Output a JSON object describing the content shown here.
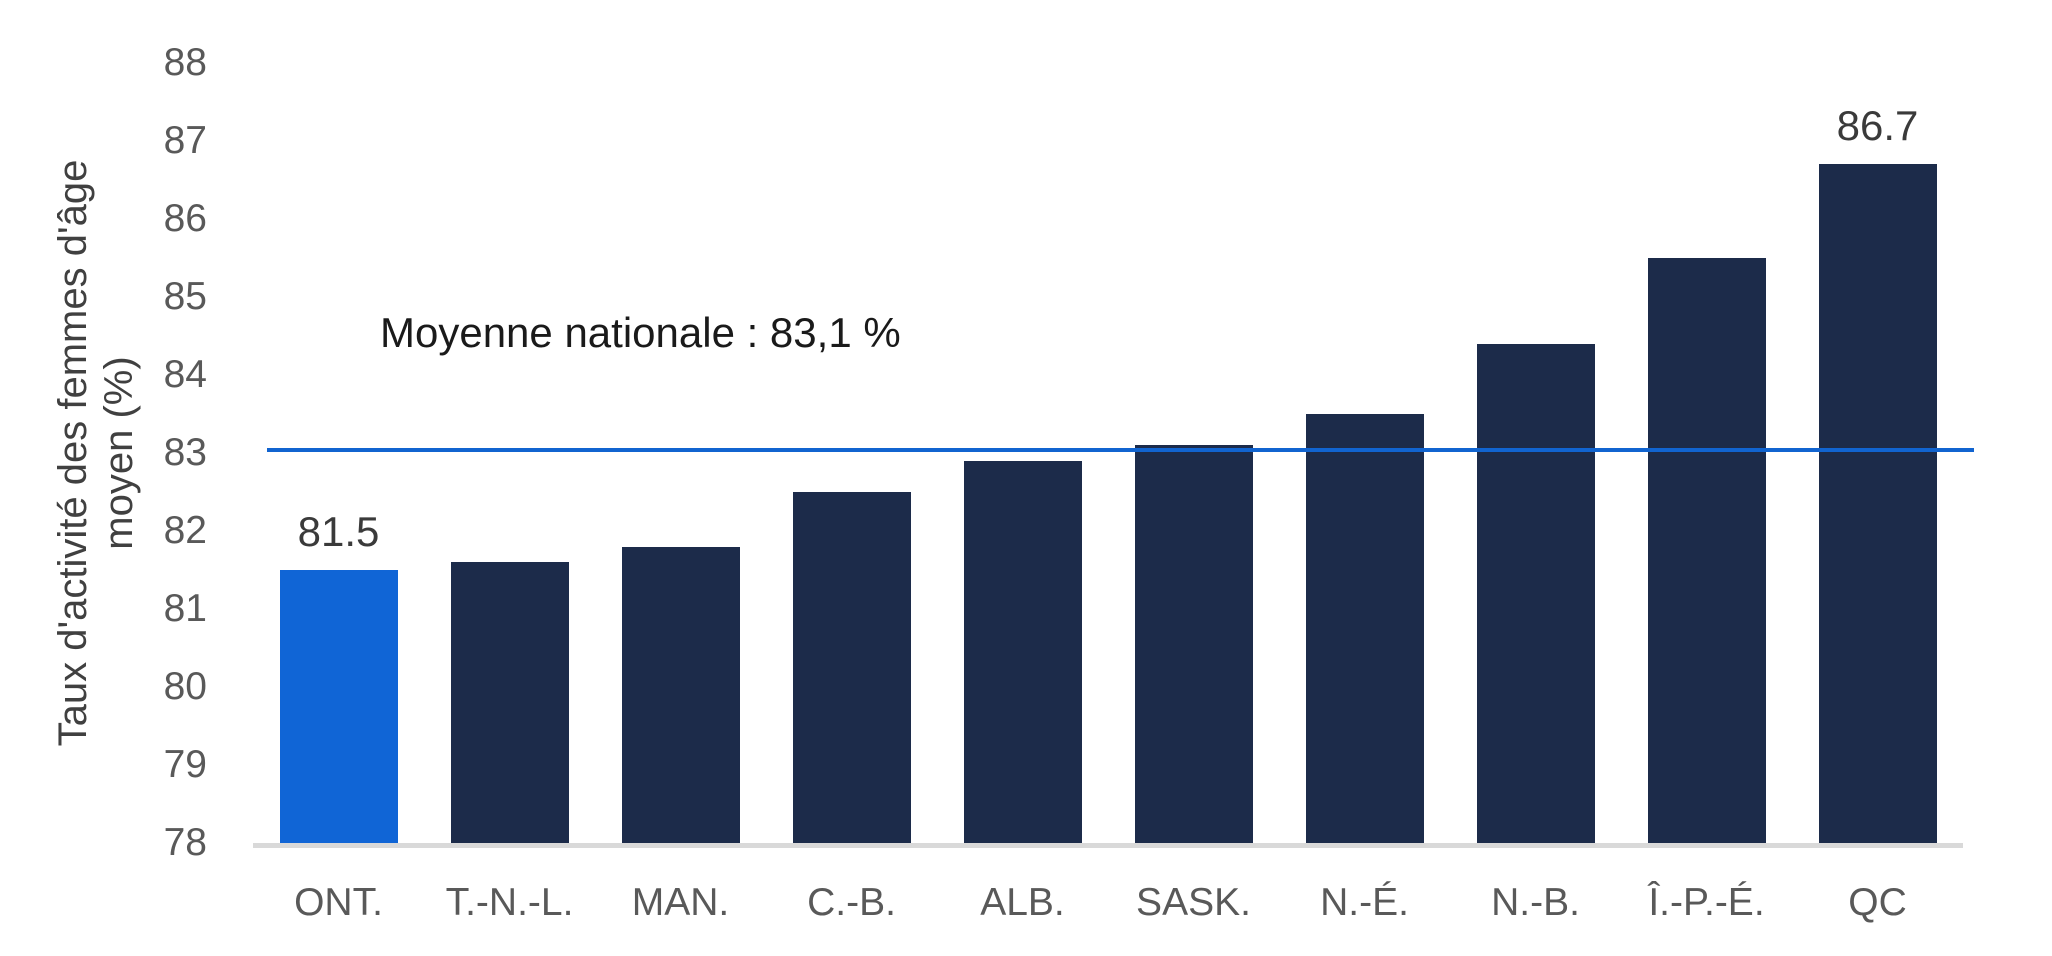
{
  "chart_data": {
    "type": "bar",
    "title": "",
    "xlabel": "",
    "ylabel": "Taux d'activité des femmes d'âge moyen (%)",
    "ylabel_lines": [
      "Taux d'activité des femmes d'âge",
      "moyen (%)"
    ],
    "ylim": [
      78,
      88
    ],
    "yticks": [
      78,
      79,
      80,
      81,
      82,
      83,
      84,
      85,
      86,
      87,
      88
    ],
    "grid": false,
    "legend": "none",
    "categories": [
      "ONT.",
      "T.-N.-L.",
      "MAN.",
      "C.-B.",
      "ALB.",
      "SASK.",
      "N.-É.",
      "N.-B.",
      "Î.-P.-É.",
      "QC"
    ],
    "values": [
      81.5,
      81.6,
      81.8,
      82.5,
      82.9,
      83.1,
      83.5,
      84.4,
      85.5,
      86.7
    ],
    "highlight_index": 0,
    "data_labels": [
      {
        "index": 0,
        "text": "81.5"
      },
      {
        "index": 9,
        "text": "86.7"
      }
    ],
    "average_line": {
      "value": 83.1,
      "label": "Moyenne nationale : 83,1 %"
    },
    "colors": {
      "bar_default": "#1c2b4a",
      "bar_highlight": "#1065d6",
      "average_line": "#1164d0",
      "axis_line": "#d9d9d9",
      "tick_text": "#595959",
      "axis_title_text": "#404040",
      "annotation_text": "#1a1a1a",
      "data_label_text": "#3a3a3a"
    }
  }
}
